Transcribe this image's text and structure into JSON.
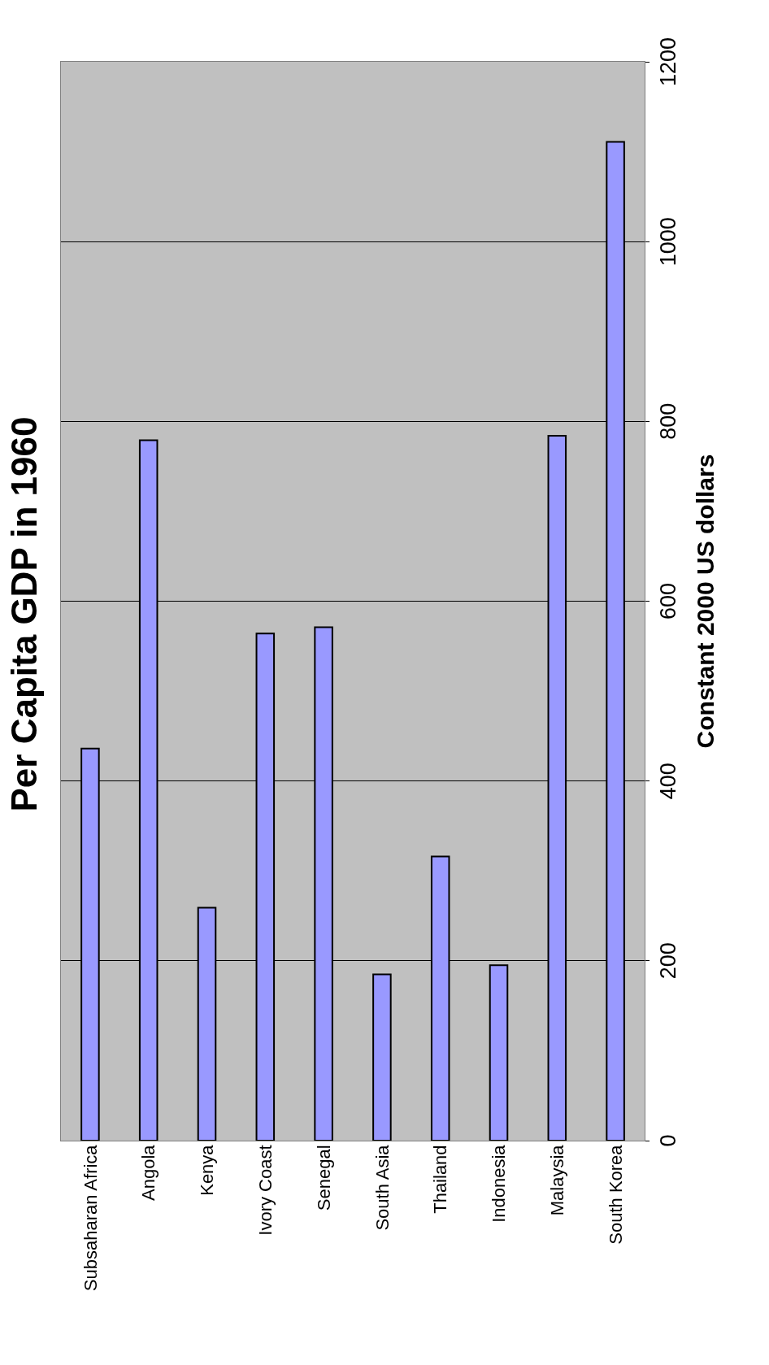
{
  "chart_data": {
    "type": "bar",
    "title": "Per Capita GDP in 1960",
    "ylabel": "Constant 2000 US dollars",
    "categories": [
      "Subsaharan Africa",
      "Angola",
      "Kenya",
      "Ivory Coast",
      "Senegal",
      "South Asia",
      "Thailand",
      "Indonesia",
      "Malaysia",
      "South Korea"
    ],
    "values": [
      436,
      779,
      259,
      564,
      571,
      185,
      316,
      195,
      784,
      1111
    ],
    "color": "#9999ff",
    "ylim": [
      0,
      1200
    ],
    "yticks": [
      0,
      200,
      400,
      600,
      800,
      1000,
      1200
    ],
    "grid": "y"
  }
}
